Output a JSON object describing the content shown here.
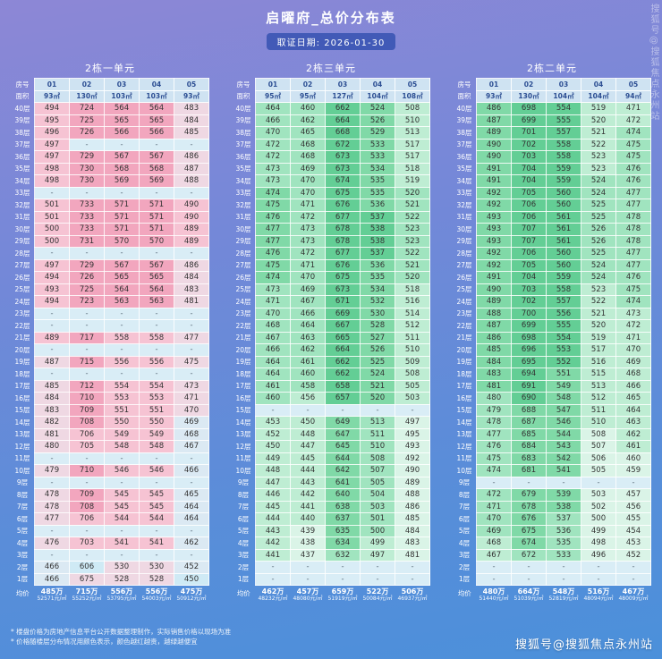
{
  "page": {
    "title": "启曜府_总价分布表",
    "date_label": "取证日期: 2026-01-30",
    "notes": [
      "* 楼盘价格为房地产信息平台公开数据整理制作，实际销售价格以现场为准",
      "* 价格随楼层分布情况用颜色表示，颜色越红越贵，越绿越便宜"
    ],
    "watermark": "搜狐号@搜狐焦点永州站",
    "colors": {
      "pink_high": "#f2a6be",
      "green_high": "#63ce95",
      "dash_bg": "#d9edf6",
      "header_bg": "#cfe3f2"
    }
  },
  "header_labels": {
    "row1": "房号",
    "row2": "面积",
    "avg": "均价"
  },
  "floors": [
    "40层",
    "39层",
    "38层",
    "37层",
    "36层",
    "35层",
    "34层",
    "33层",
    "32层",
    "31层",
    "30层",
    "29层",
    "28层",
    "27层",
    "26层",
    "25层",
    "24层",
    "23层",
    "22层",
    "21层",
    "20层",
    "19层",
    "18层",
    "17层",
    "16层",
    "15层",
    "14层",
    "13层",
    "12层",
    "11层",
    "10层",
    "9层",
    "8层",
    "7层",
    "6层",
    "5层",
    "4层",
    "3层",
    "2层",
    "1层"
  ],
  "chart_data": [
    {
      "type": "heatmap",
      "title": "2栋一单元",
      "columns": [
        "01",
        "02",
        "03",
        "04",
        "05"
      ],
      "areas": [
        "93㎡",
        "130㎡",
        "103㎡",
        "103㎡",
        "93㎡"
      ],
      "area_values": [
        93,
        130,
        103,
        103,
        93
      ],
      "palette": "pink",
      "rows": [
        [
          494,
          724,
          564,
          564,
          483
        ],
        [
          495,
          725,
          565,
          565,
          484
        ],
        [
          496,
          726,
          566,
          566,
          485
        ],
        [
          497,
          null,
          null,
          null,
          null
        ],
        [
          497,
          729,
          567,
          567,
          486
        ],
        [
          498,
          730,
          568,
          568,
          487
        ],
        [
          498,
          730,
          569,
          569,
          488
        ],
        [
          null,
          null,
          null,
          null,
          null
        ],
        [
          501,
          733,
          571,
          571,
          490
        ],
        [
          501,
          733,
          571,
          571,
          490
        ],
        [
          500,
          733,
          571,
          571,
          489
        ],
        [
          500,
          731,
          570,
          570,
          489
        ],
        [
          null,
          null,
          null,
          null,
          null
        ],
        [
          497,
          729,
          567,
          567,
          486
        ],
        [
          494,
          726,
          565,
          565,
          484
        ],
        [
          493,
          725,
          564,
          564,
          483
        ],
        [
          494,
          723,
          563,
          563,
          481
        ],
        [
          null,
          null,
          null,
          null,
          null
        ],
        [
          null,
          null,
          null,
          null,
          null
        ],
        [
          489,
          717,
          558,
          558,
          477
        ],
        [
          null,
          null,
          null,
          null,
          null
        ],
        [
          487,
          715,
          556,
          556,
          475
        ],
        [
          null,
          null,
          null,
          null,
          null
        ],
        [
          485,
          712,
          554,
          554,
          473
        ],
        [
          484,
          710,
          553,
          553,
          471
        ],
        [
          483,
          709,
          551,
          551,
          470
        ],
        [
          482,
          708,
          550,
          550,
          469
        ],
        [
          481,
          706,
          549,
          549,
          468
        ],
        [
          480,
          705,
          548,
          548,
          467
        ],
        [
          null,
          null,
          null,
          null,
          null
        ],
        [
          479,
          710,
          546,
          546,
          466
        ],
        [
          null,
          null,
          null,
          null,
          null
        ],
        [
          478,
          709,
          545,
          545,
          465
        ],
        [
          478,
          708,
          545,
          545,
          464
        ],
        [
          477,
          706,
          544,
          544,
          464
        ],
        [
          null,
          null,
          null,
          null,
          null
        ],
        [
          476,
          703,
          541,
          541,
          462
        ],
        [
          null,
          null,
          null,
          null,
          null
        ],
        [
          466,
          606,
          530,
          530,
          452
        ],
        [
          466,
          675,
          528,
          528,
          450
        ]
      ],
      "avg": [
        {
          "total": "485万",
          "per_sqm": "52571元/㎡"
        },
        {
          "total": "715万",
          "per_sqm": "55252元/㎡"
        },
        {
          "total": "556万",
          "per_sqm": "53795元/㎡"
        },
        {
          "total": "556万",
          "per_sqm": "54003元/㎡"
        },
        {
          "total": "475万",
          "per_sqm": "50912元/㎡"
        }
      ]
    },
    {
      "type": "heatmap",
      "title": "2栋三单元",
      "columns": [
        "01",
        "02",
        "03",
        "04",
        "05"
      ],
      "areas": [
        "95㎡",
        "95㎡",
        "127㎡",
        "104㎡",
        "108㎡"
      ],
      "area_values": [
        95,
        95,
        127,
        104,
        108
      ],
      "palette": "green",
      "rows": [
        [
          464,
          460,
          662,
          524,
          508
        ],
        [
          466,
          462,
          664,
          526,
          510
        ],
        [
          470,
          465,
          668,
          529,
          513
        ],
        [
          472,
          468,
          672,
          533,
          517
        ],
        [
          472,
          468,
          673,
          533,
          517
        ],
        [
          473,
          469,
          673,
          534,
          518
        ],
        [
          473,
          470,
          674,
          535,
          519
        ],
        [
          474,
          470,
          675,
          535,
          520
        ],
        [
          475,
          471,
          676,
          536,
          521
        ],
        [
          476,
          472,
          677,
          537,
          522
        ],
        [
          477,
          473,
          678,
          538,
          523
        ],
        [
          477,
          473,
          678,
          538,
          523
        ],
        [
          476,
          472,
          677,
          537,
          522
        ],
        [
          475,
          471,
          676,
          536,
          521
        ],
        [
          474,
          470,
          675,
          535,
          520
        ],
        [
          473,
          469,
          673,
          534,
          518
        ],
        [
          471,
          467,
          671,
          532,
          516
        ],
        [
          470,
          466,
          669,
          530,
          514
        ],
        [
          468,
          464,
          667,
          528,
          512
        ],
        [
          467,
          463,
          665,
          527,
          511
        ],
        [
          466,
          462,
          664,
          526,
          510
        ],
        [
          464,
          461,
          662,
          525,
          509
        ],
        [
          464,
          460,
          662,
          524,
          508
        ],
        [
          461,
          458,
          658,
          521,
          505
        ],
        [
          460,
          456,
          657,
          520,
          503
        ],
        [
          null,
          null,
          null,
          null,
          null
        ],
        [
          453,
          450,
          649,
          513,
          497
        ],
        [
          452,
          448,
          647,
          511,
          495
        ],
        [
          450,
          447,
          645,
          510,
          493
        ],
        [
          449,
          445,
          644,
          508,
          492
        ],
        [
          448,
          444,
          642,
          507,
          490
        ],
        [
          447,
          443,
          641,
          505,
          489
        ],
        [
          446,
          442,
          640,
          504,
          488
        ],
        [
          445,
          441,
          638,
          503,
          486
        ],
        [
          444,
          440,
          637,
          501,
          485
        ],
        [
          443,
          439,
          635,
          500,
          484
        ],
        [
          442,
          438,
          634,
          499,
          483
        ],
        [
          441,
          437,
          632,
          497,
          481
        ],
        [
          null,
          null,
          null,
          null,
          null
        ],
        [
          null,
          null,
          null,
          null,
          null
        ]
      ],
      "avg": [
        {
          "total": "462万",
          "per_sqm": "48232元/㎡"
        },
        {
          "total": "457万",
          "per_sqm": "48080元/㎡"
        },
        {
          "total": "659万",
          "per_sqm": "51919元/㎡"
        },
        {
          "total": "522万",
          "per_sqm": "50084元/㎡"
        },
        {
          "total": "506万",
          "per_sqm": "46937元/㎡"
        }
      ]
    },
    {
      "type": "heatmap",
      "title": "2栋二单元",
      "columns": [
        "01",
        "02",
        "03",
        "04",
        "05"
      ],
      "areas": [
        "93㎡",
        "130㎡",
        "104㎡",
        "104㎡",
        "94㎡"
      ],
      "area_values": [
        93,
        130,
        104,
        104,
        94
      ],
      "palette": "green",
      "rows": [
        [
          486,
          698,
          554,
          519,
          471
        ],
        [
          487,
          699,
          555,
          520,
          472
        ],
        [
          489,
          701,
          557,
          521,
          474
        ],
        [
          490,
          702,
          558,
          522,
          475
        ],
        [
          490,
          703,
          558,
          523,
          475
        ],
        [
          491,
          704,
          559,
          523,
          476
        ],
        [
          491,
          704,
          559,
          524,
          476
        ],
        [
          492,
          705,
          560,
          524,
          477
        ],
        [
          492,
          706,
          560,
          525,
          477
        ],
        [
          493,
          706,
          561,
          525,
          478
        ],
        [
          493,
          707,
          561,
          526,
          478
        ],
        [
          493,
          707,
          561,
          526,
          478
        ],
        [
          492,
          706,
          560,
          525,
          477
        ],
        [
          492,
          705,
          560,
          524,
          477
        ],
        [
          491,
          704,
          559,
          524,
          476
        ],
        [
          490,
          703,
          558,
          523,
          475
        ],
        [
          489,
          702,
          557,
          522,
          474
        ],
        [
          488,
          700,
          556,
          521,
          473
        ],
        [
          487,
          699,
          555,
          520,
          472
        ],
        [
          486,
          698,
          554,
          519,
          471
        ],
        [
          485,
          696,
          553,
          517,
          470
        ],
        [
          484,
          695,
          552,
          516,
          469
        ],
        [
          483,
          694,
          551,
          515,
          468
        ],
        [
          481,
          691,
          549,
          513,
          466
        ],
        [
          480,
          690,
          548,
          512,
          465
        ],
        [
          479,
          688,
          547,
          511,
          464
        ],
        [
          478,
          687,
          546,
          510,
          463
        ],
        [
          477,
          685,
          544,
          508,
          462
        ],
        [
          476,
          684,
          543,
          507,
          461
        ],
        [
          475,
          683,
          542,
          506,
          460
        ],
        [
          474,
          681,
          541,
          505,
          459
        ],
        [
          null,
          null,
          null,
          null,
          null
        ],
        [
          472,
          679,
          539,
          503,
          457
        ],
        [
          471,
          678,
          538,
          502,
          456
        ],
        [
          470,
          676,
          537,
          500,
          455
        ],
        [
          469,
          675,
          536,
          499,
          454
        ],
        [
          468,
          674,
          535,
          498,
          453
        ],
        [
          467,
          672,
          533,
          496,
          452
        ],
        [
          null,
          null,
          null,
          null,
          null
        ],
        [
          null,
          null,
          null,
          null,
          null
        ]
      ],
      "avg": [
        {
          "total": "480万",
          "per_sqm": "51440元/㎡"
        },
        {
          "total": "664万",
          "per_sqm": "51039元/㎡"
        },
        {
          "total": "548万",
          "per_sqm": "52819元/㎡"
        },
        {
          "total": "516万",
          "per_sqm": "48094元/㎡"
        },
        {
          "total": "467万",
          "per_sqm": "48009元/㎡"
        }
      ]
    }
  ]
}
